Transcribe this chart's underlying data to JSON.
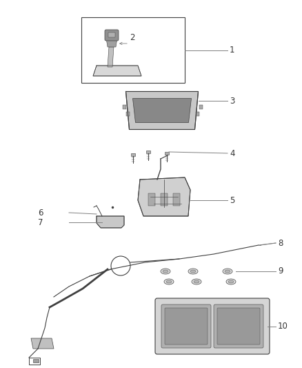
{
  "bg_color": "#ffffff",
  "line_color": "#404040",
  "label_color": "#333333",
  "font_size_label": 8.5,
  "leader_color": "#808080",
  "part_color": "#606060",
  "fig_w": 4.38,
  "fig_h": 5.33,
  "dpi": 100
}
